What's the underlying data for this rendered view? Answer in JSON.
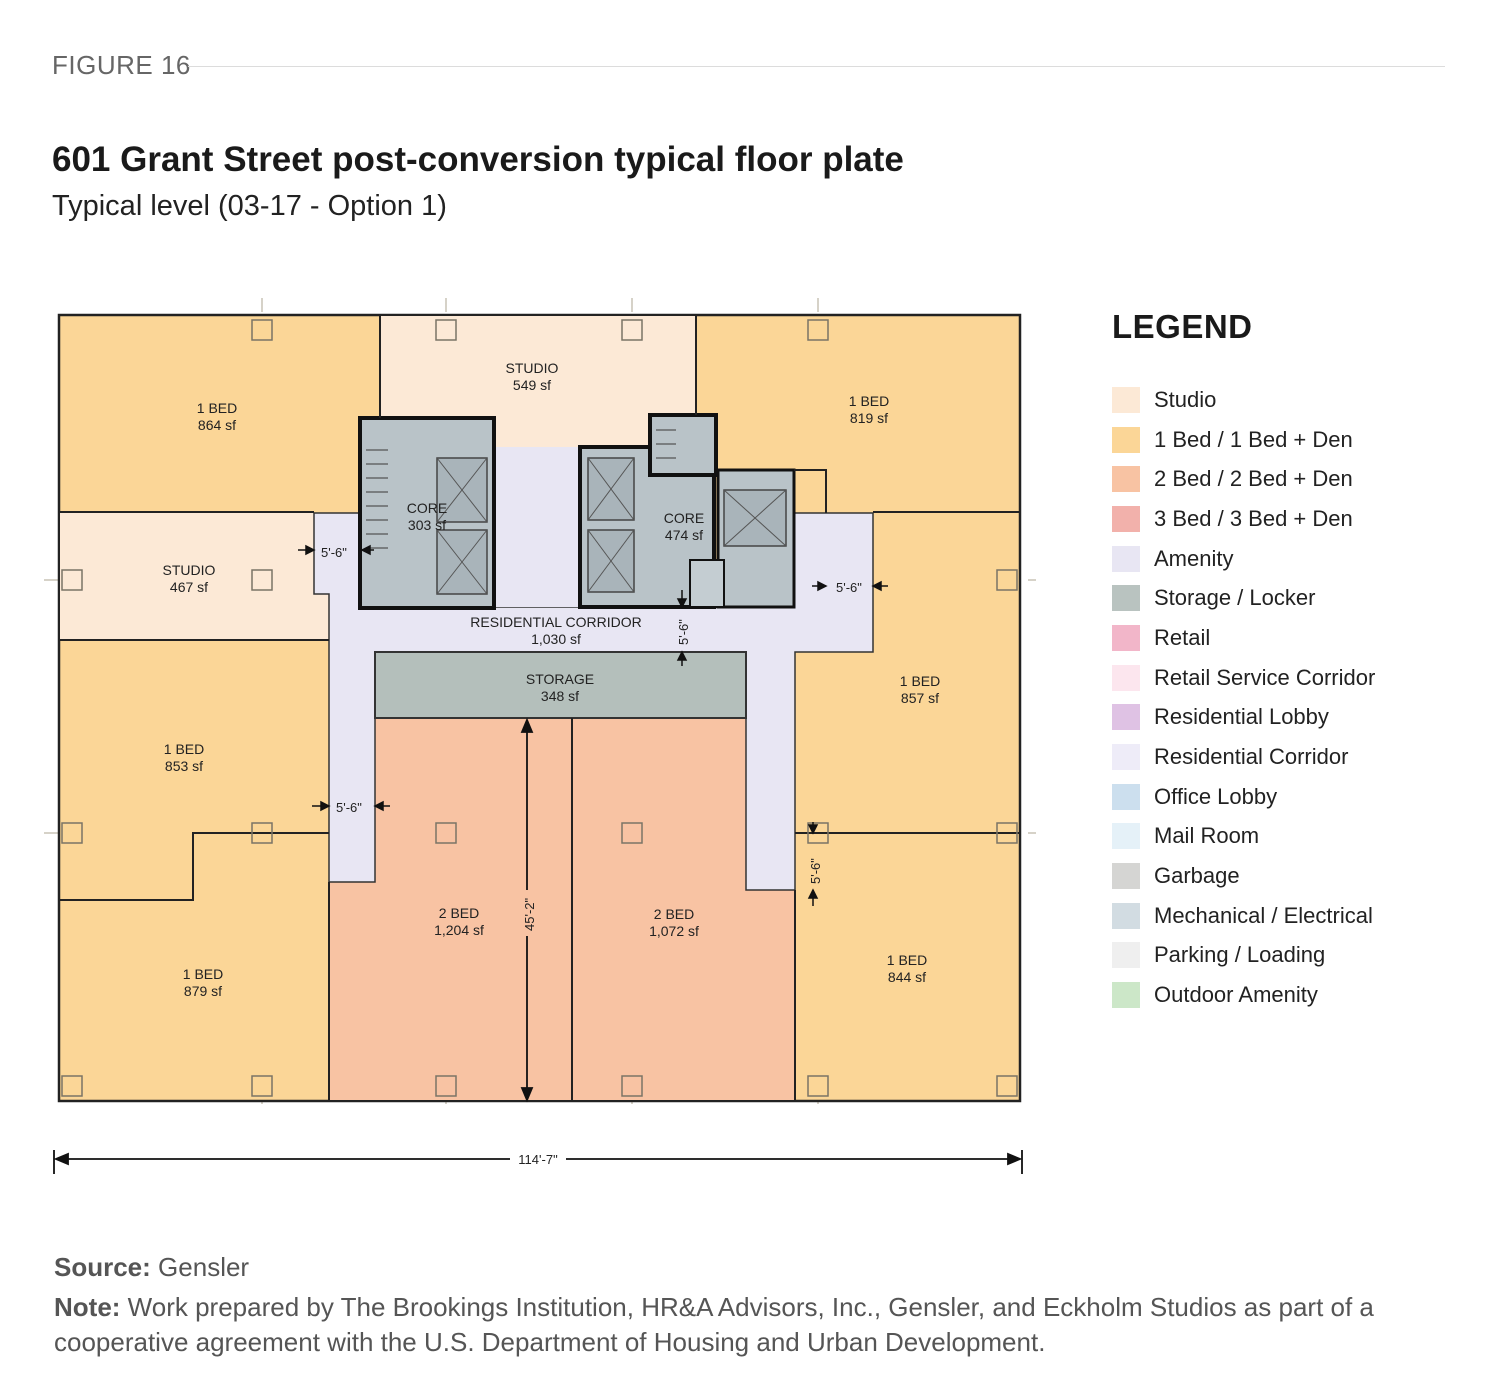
{
  "figure": {
    "label": "FIGURE 16",
    "title": "601 Grant Street post-conversion typical floor plate",
    "subtitle": "Typical level (03-17 - Option 1)"
  },
  "rooms": [
    {
      "id": "nw-1bed",
      "name": "1 BED",
      "area": "864 sf"
    },
    {
      "id": "north-studio",
      "name": "STUDIO",
      "area": "549 sf"
    },
    {
      "id": "ne-1bed",
      "name": "1 BED",
      "area": "819 sf"
    },
    {
      "id": "west-studio",
      "name": "STUDIO",
      "area": "467 sf"
    },
    {
      "id": "core-left",
      "name": "CORE",
      "area": "303 sf"
    },
    {
      "id": "core-right",
      "name": "CORE",
      "area": "474 sf"
    },
    {
      "id": "corridor",
      "name": "RESIDENTIAL CORRIDOR",
      "area": "1,030 sf"
    },
    {
      "id": "storage",
      "name": "STORAGE",
      "area": "348 sf"
    },
    {
      "id": "west-1bed",
      "name": "1 BED",
      "area": "853 sf"
    },
    {
      "id": "east-1bed",
      "name": "1 BED",
      "area": "857 sf"
    },
    {
      "id": "sw-1bed",
      "name": "1 BED",
      "area": "879 sf"
    },
    {
      "id": "2bed-left",
      "name": "2 BED",
      "area": "1,204 sf"
    },
    {
      "id": "2bed-right",
      "name": "2 BED",
      "area": "1,072 sf"
    },
    {
      "id": "se-1bed",
      "name": "1 BED",
      "area": "844 sf"
    }
  ],
  "dimensions": {
    "overall_width": "114'-7\"",
    "depth": "45'-2\"",
    "clearance": "5'-6\""
  },
  "legend": {
    "title": "LEGEND",
    "items": [
      {
        "label": "Studio",
        "color": "#fce9d6"
      },
      {
        "label": "1 Bed / 1 Bed + Den",
        "color": "#fbd697"
      },
      {
        "label": "2 Bed / 2 Bed + Den",
        "color": "#f8c3a3"
      },
      {
        "label": "3 Bed / 3 Bed + Den",
        "color": "#f2b1ab"
      },
      {
        "label": "Amenity",
        "color": "#e8e6f3"
      },
      {
        "label": "Storage / Locker",
        "color": "#b9c3c0"
      },
      {
        "label": "Retail",
        "color": "#f2b6c9"
      },
      {
        "label": "Retail Service Corridor",
        "color": "#fce6ee"
      },
      {
        "label": "Residential Lobby",
        "color": "#dfc2e4"
      },
      {
        "label": "Residential Corridor",
        "color": "#eeecf8"
      },
      {
        "label": "Office Lobby",
        "color": "#ccdfee"
      },
      {
        "label": "Mail Room",
        "color": "#e5f1f8"
      },
      {
        "label": "Garbage",
        "color": "#d5d5d3"
      },
      {
        "label": "Mechanical / Electrical",
        "color": "#d2dce2"
      },
      {
        "label": "Parking / Loading",
        "color": "#efefef"
      },
      {
        "label": "Outdoor Amenity",
        "color": "#cce7c8"
      }
    ]
  },
  "footer": {
    "source_label": "Source:",
    "source_text": "Gensler",
    "note_label": "Note:",
    "note_text": "Work prepared by The Brookings Institution, HR&A Advisors, Inc., Gensler, and Eckholm Studios as part of a cooperative agreement with the U.S. Department of Housing and Urban Development."
  }
}
